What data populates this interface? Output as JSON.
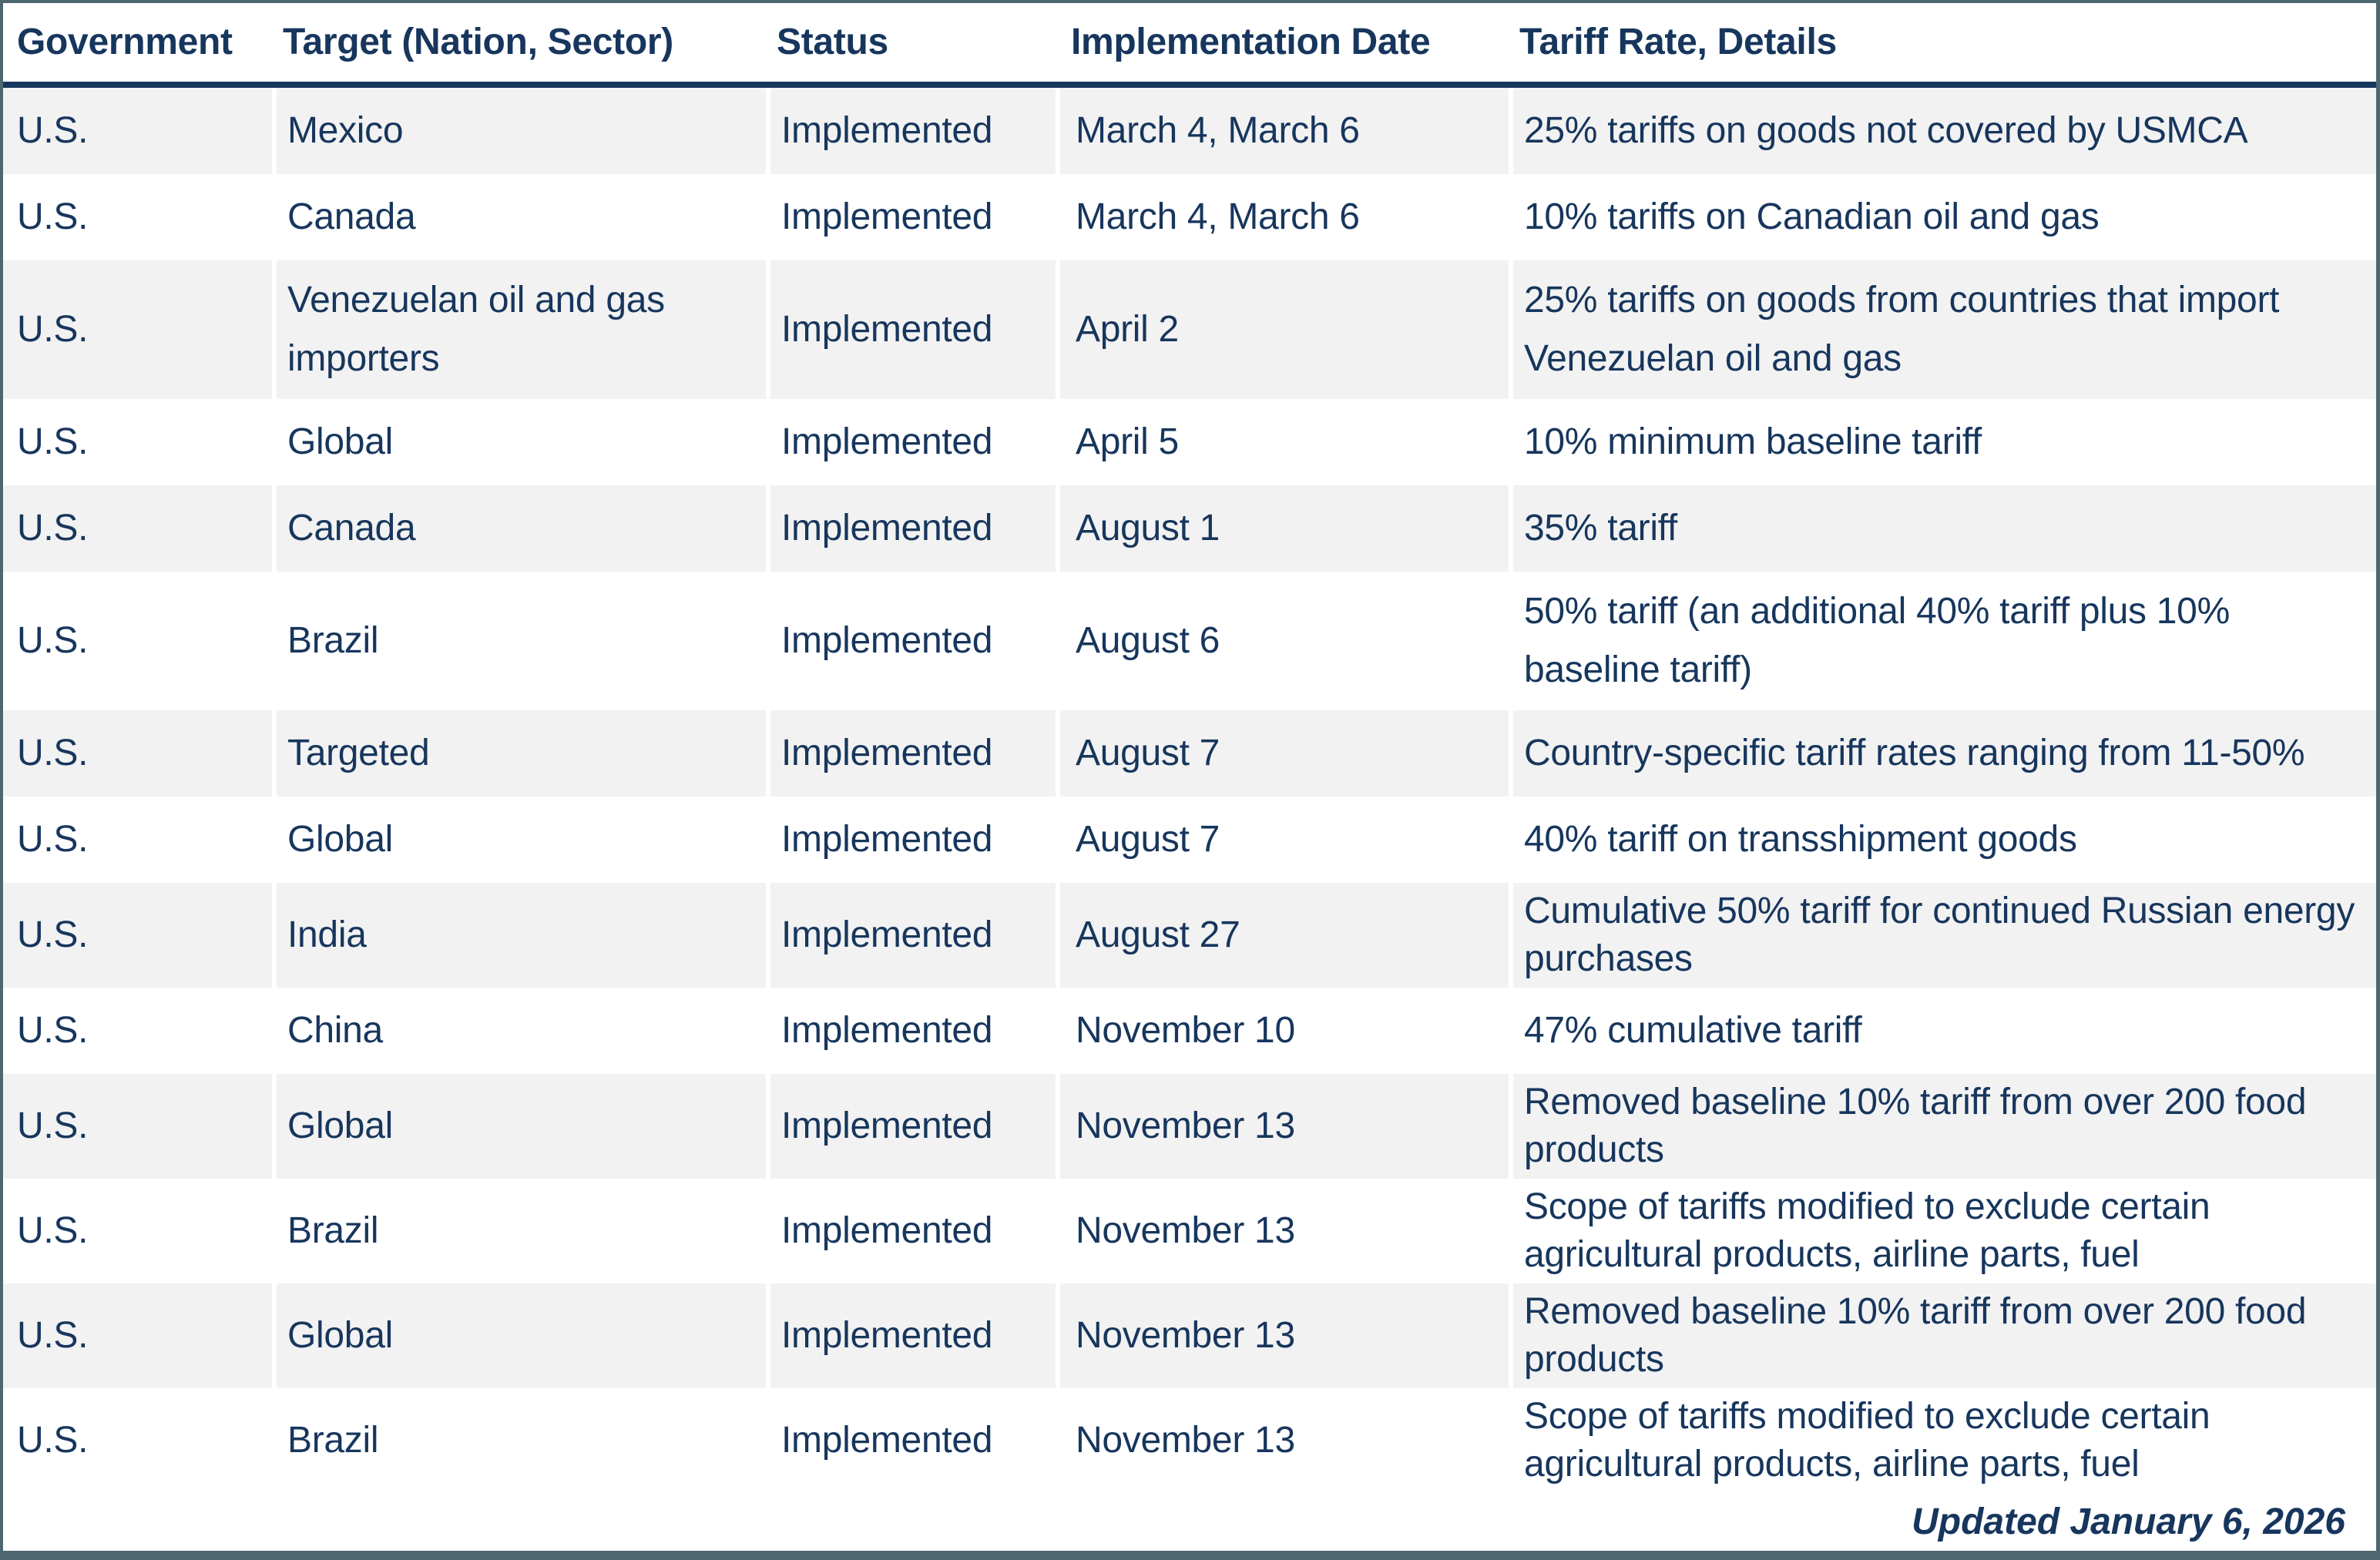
{
  "header": {
    "columns": [
      "Government",
      "Target (Nation, Sector)",
      "Status",
      "Implementation Date",
      "Tariff Rate, Details"
    ]
  },
  "rows": [
    {
      "government": "U.S.",
      "target": "Mexico",
      "status": "Implemented",
      "date": "March 4, March 6",
      "details": "25% tariffs on goods not covered by USMCA"
    },
    {
      "government": "U.S.",
      "target": "Canada",
      "status": "Implemented",
      "date": "March 4, March 6",
      "details": "10% tariffs on Canadian oil and gas"
    },
    {
      "government": "U.S.",
      "target": "Venezuelan oil and gas importers",
      "status": "Implemented",
      "date": "April 2",
      "details": "25% tariffs on goods from countries that import Venezuelan oil and gas"
    },
    {
      "government": "U.S.",
      "target": "Global",
      "status": "Implemented",
      "date": "April 5",
      "details": "10% minimum baseline tariff"
    },
    {
      "government": "U.S.",
      "target": "Canada",
      "status": "Implemented",
      "date": "August 1",
      "details": "35% tariff"
    },
    {
      "government": "U.S.",
      "target": "Brazil",
      "status": "Implemented",
      "date": "August 6",
      "details": "50% tariff (an additional 40% tariff plus 10% baseline tariff)"
    },
    {
      "government": "U.S.",
      "target": "Targeted",
      "status": "Implemented",
      "date": "August 7",
      "details": "Country-specific tariff rates ranging from 11-50%"
    },
    {
      "government": "U.S.",
      "target": "Global",
      "status": "Implemented",
      "date": "August 7",
      "details": "40% tariff on transshipment goods"
    },
    {
      "government": "U.S.",
      "target": "India",
      "status": "Implemented",
      "date": "August 27",
      "details": "Cumulative 50% tariff for continued Russian energy purchases"
    },
    {
      "government": "U.S.",
      "target": "China",
      "status": "Implemented",
      "date": "November 10",
      "details": "47% cumulative tariff"
    },
    {
      "government": "U.S.",
      "target": "Global",
      "status": "Implemented",
      "date": "November 13",
      "details": "Removed baseline 10% tariff from over 200 food products"
    },
    {
      "government": "U.S.",
      "target": "Brazil",
      "status": "Implemented",
      "date": "November 13",
      "details": "Scope of tariffs modified to exclude certain agricultural products, airline parts, fuel"
    },
    {
      "government": "U.S.",
      "target": "Global",
      "status": "Implemented",
      "date": "November 13",
      "details": "Removed baseline 10% tariff from over 200 food products"
    },
    {
      "government": "U.S.",
      "target": "Brazil",
      "status": "Implemented",
      "date": "November 13",
      "details": "Scope of tariffs modified to exclude certain agricultural products, airline parts, fuel"
    }
  ],
  "footer": {
    "updated_label": "Updated January 6, 2026"
  },
  "colors": {
    "text_navy": "#17365d",
    "header_rule_navy": "#17365d",
    "row_stripe_gray": "#f2f2f2",
    "frame_slate": "#4d6770",
    "background": "#ffffff"
  }
}
